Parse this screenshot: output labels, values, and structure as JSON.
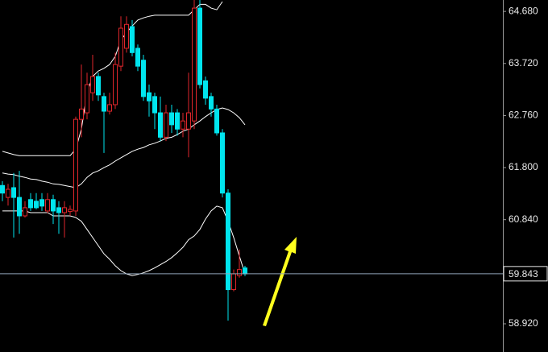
{
  "chart_data": {
    "type": "candlestick",
    "ylim": [
      58.4,
      64.89
    ],
    "yticks": [
      {
        "value": 64.68,
        "label": "64.680"
      },
      {
        "value": 63.72,
        "label": "63.720"
      },
      {
        "value": 62.76,
        "label": "62.760"
      },
      {
        "value": 61.8,
        "label": "61.800"
      },
      {
        "value": 60.84,
        "label": "60.840"
      },
      {
        "value": 58.92,
        "label": "58.920"
      }
    ],
    "last_price": 59.843,
    "up_color": "#e0262b",
    "down_color": "#00e5ee",
    "open": [
      61.47,
      61.25,
      61.43,
      61.25,
      60.91,
      61.21,
      61.18,
      61.21,
      61.0,
      61.21,
      61.06,
      60.97,
      60.99,
      61.0,
      62.69,
      62.81,
      63.18,
      63.48,
      63.11,
      62.84,
      62.96,
      63.67,
      64.0,
      64.4,
      64.0,
      63.78,
      63.18,
      63.11,
      62.81,
      62.36,
      62.81,
      62.81,
      62.51,
      62.51,
      62.66,
      64.74,
      63.4,
      63.11,
      62.88,
      62.44,
      61.33,
      59.55,
      59.81,
      59.95
    ],
    "high": [
      61.55,
      61.5,
      61.7,
      61.74,
      61.18,
      61.33,
      61.33,
      61.33,
      61.33,
      61.3,
      61.18,
      61.18,
      61.1,
      62.74,
      63.7,
      63.55,
      63.88,
      63.55,
      63.18,
      63.18,
      63.92,
      64.59,
      64.59,
      64.52,
      64.07,
      63.88,
      63.33,
      63.18,
      63.11,
      62.96,
      62.96,
      62.88,
      62.81,
      63.55,
      64.89,
      64.89,
      63.48,
      63.18,
      62.96,
      62.51,
      61.4,
      59.92,
      60.29,
      59.99
    ],
    "low": [
      61.18,
      61.1,
      60.51,
      60.58,
      60.88,
      61.0,
      61.03,
      61.0,
      60.96,
      60.76,
      60.58,
      60.51,
      60.91,
      60.91,
      62.36,
      62.69,
      63.03,
      63.03,
      62.07,
      62.78,
      62.88,
      63.58,
      63.92,
      63.85,
      63.58,
      63.03,
      62.74,
      62.51,
      62.29,
      62.29,
      62.44,
      62.39,
      62.36,
      61.99,
      62.51,
      63.26,
      62.96,
      62.74,
      62.39,
      61.25,
      58.98,
      59.52,
      59.77,
      59.8
    ],
    "close": [
      61.33,
      61.4,
      61.25,
      60.91,
      61.06,
      61.06,
      61.06,
      61.09,
      61.21,
      61.0,
      60.97,
      61.06,
      61.03,
      62.69,
      62.88,
      63.33,
      63.48,
      63.14,
      62.84,
      62.96,
      63.7,
      64.37,
      64.44,
      63.92,
      63.67,
      63.11,
      63.03,
      62.81,
      62.36,
      62.81,
      62.59,
      62.51,
      62.66,
      62.81,
      64.74,
      63.33,
      63.08,
      62.88,
      62.44,
      61.33,
      59.55,
      59.84,
      59.92,
      59.84
    ],
    "series": [
      {
        "color": "#ffffff",
        "values": [
          62.1,
          62.07,
          62.04,
          62.02,
          62.02,
          62.02,
          62.02,
          62.02,
          62.02,
          62.02,
          62.02,
          62.02,
          62.02,
          62.14,
          62.51,
          63.18,
          63.48,
          63.58,
          63.63,
          63.7,
          63.85,
          64.15,
          64.29,
          64.41,
          64.52,
          64.56,
          64.59,
          64.61,
          64.61,
          64.61,
          64.61,
          64.61,
          64.61,
          64.61,
          64.71,
          64.81,
          64.81,
          64.74,
          64.71,
          64.86,
          null,
          null,
          null,
          null
        ]
      },
      {
        "color": "#ffffff",
        "values": [
          61.7,
          61.68,
          61.67,
          61.64,
          61.62,
          61.59,
          61.58,
          61.55,
          61.53,
          61.5,
          61.49,
          61.47,
          61.45,
          61.43,
          61.5,
          61.62,
          61.7,
          61.74,
          61.8,
          61.85,
          61.92,
          61.98,
          62.04,
          62.1,
          62.14,
          62.17,
          62.22,
          62.25,
          62.29,
          62.34,
          62.36,
          62.41,
          62.47,
          62.51,
          62.59,
          62.66,
          62.74,
          62.81,
          62.87,
          62.9,
          62.87,
          62.81,
          62.72,
          62.59
        ]
      },
      {
        "color": "#ffffff",
        "values": [
          61.0,
          61.0,
          61.0,
          61.0,
          61.0,
          60.97,
          60.97,
          60.97,
          60.97,
          60.91,
          60.91,
          60.91,
          60.91,
          60.88,
          60.81,
          60.66,
          60.51,
          60.36,
          60.21,
          60.11,
          59.99,
          59.9,
          59.84,
          59.81,
          59.83,
          59.86,
          59.9,
          59.95,
          60.01,
          60.07,
          60.14,
          60.23,
          60.33,
          60.47,
          60.54,
          60.66,
          60.85,
          61.0,
          61.09,
          61.06,
          60.81,
          60.51,
          60.17,
          59.84
        ]
      }
    ]
  }
}
